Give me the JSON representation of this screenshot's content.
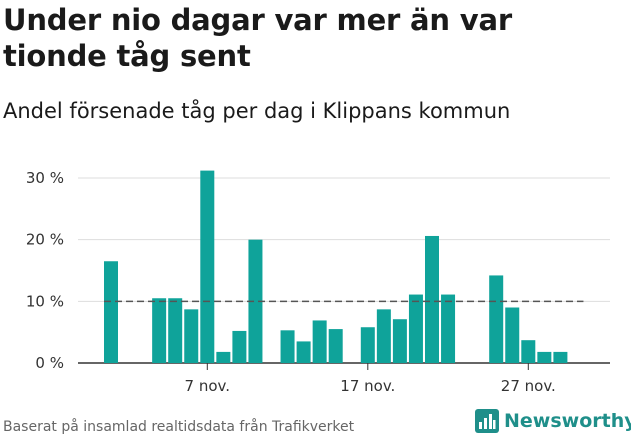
{
  "title": "Under nio dagar var mer än var tionde tåg sent",
  "subtitle": "Andel försenade tåg per dag i Klippans kommun",
  "footer": "Baserat på insamlad realtidsdata från Trafikverket",
  "brand": "Newsworthy",
  "colors": {
    "bar": "#0fa39a",
    "reference": "#555555",
    "grid": "#dddddd",
    "brand": "#1f8f8a"
  },
  "chart_data": {
    "type": "bar",
    "unit": "%",
    "ylim": [
      0,
      30
    ],
    "yticks": [
      0,
      10,
      20,
      30
    ],
    "ytick_labels": [
      "0 %",
      "10 %",
      "20 %",
      "30 %"
    ],
    "xtick_labels": [
      {
        "label": "7 nov.",
        "day": 7
      },
      {
        "label": "17 nov.",
        "day": 17
      },
      {
        "label": "27 nov.",
        "day": 27
      }
    ],
    "day_range": [
      1,
      30
    ],
    "reference_line": 10,
    "grid": true,
    "bars": [
      {
        "day": 1,
        "value": 16.5
      },
      {
        "day": 4,
        "value": 10.5
      },
      {
        "day": 5,
        "value": 10.5
      },
      {
        "day": 6,
        "value": 8.7
      },
      {
        "day": 7,
        "value": 31.2
      },
      {
        "day": 8,
        "value": 1.8
      },
      {
        "day": 9,
        "value": 5.2
      },
      {
        "day": 10,
        "value": 20.0
      },
      {
        "day": 12,
        "value": 5.3
      },
      {
        "day": 13,
        "value": 3.5
      },
      {
        "day": 14,
        "value": 6.9
      },
      {
        "day": 15,
        "value": 5.5
      },
      {
        "day": 17,
        "value": 5.8
      },
      {
        "day": 18,
        "value": 8.7
      },
      {
        "day": 19,
        "value": 7.1
      },
      {
        "day": 20,
        "value": 11.1
      },
      {
        "day": 21,
        "value": 20.6
      },
      {
        "day": 22,
        "value": 11.1
      },
      {
        "day": 25,
        "value": 14.2
      },
      {
        "day": 26,
        "value": 9.0
      },
      {
        "day": 27,
        "value": 3.7
      },
      {
        "day": 28,
        "value": 1.8
      },
      {
        "day": 29,
        "value": 1.8
      }
    ]
  }
}
